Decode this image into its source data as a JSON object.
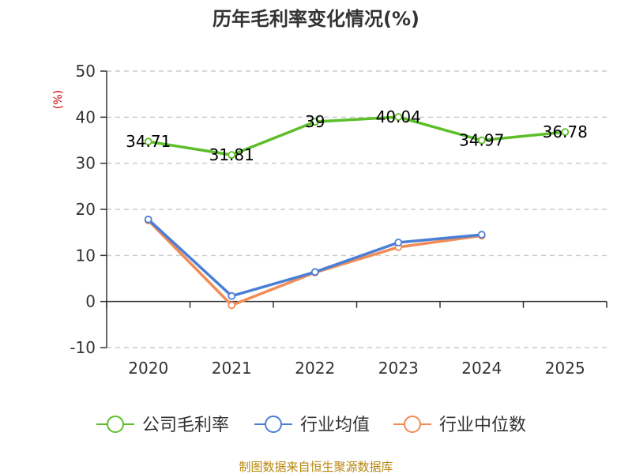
{
  "chart_data": {
    "type": "line",
    "title": "历年毛利率变化情况(%)",
    "ylabel": "(%)",
    "categories": [
      "2020",
      "2021",
      "2022",
      "2023",
      "2024",
      "2025"
    ],
    "ylim": [
      -10,
      50
    ],
    "yticks": [
      "50",
      "40",
      "30",
      "20",
      "10",
      "0",
      "-10"
    ],
    "grid": true,
    "legend_position": "bottom",
    "series": [
      {
        "name": "公司毛利率",
        "color": "#5cbf2a",
        "values": [
          34.71,
          31.81,
          39,
          40.04,
          34.97,
          36.78
        ],
        "labels": [
          "34.71",
          "31.81",
          "39",
          "40.04",
          "34.97",
          "36.78"
        ]
      },
      {
        "name": "行业均值",
        "color": "#4a7fd6",
        "values": [
          17.8,
          1.2,
          6.4,
          12.8,
          14.5,
          null
        ]
      },
      {
        "name": "行业中位数",
        "color": "#f28b54",
        "values": [
          17.6,
          -0.8,
          6.3,
          11.8,
          14.3,
          null
        ]
      }
    ]
  },
  "source": "制图数据来自恒生聚源数据库"
}
